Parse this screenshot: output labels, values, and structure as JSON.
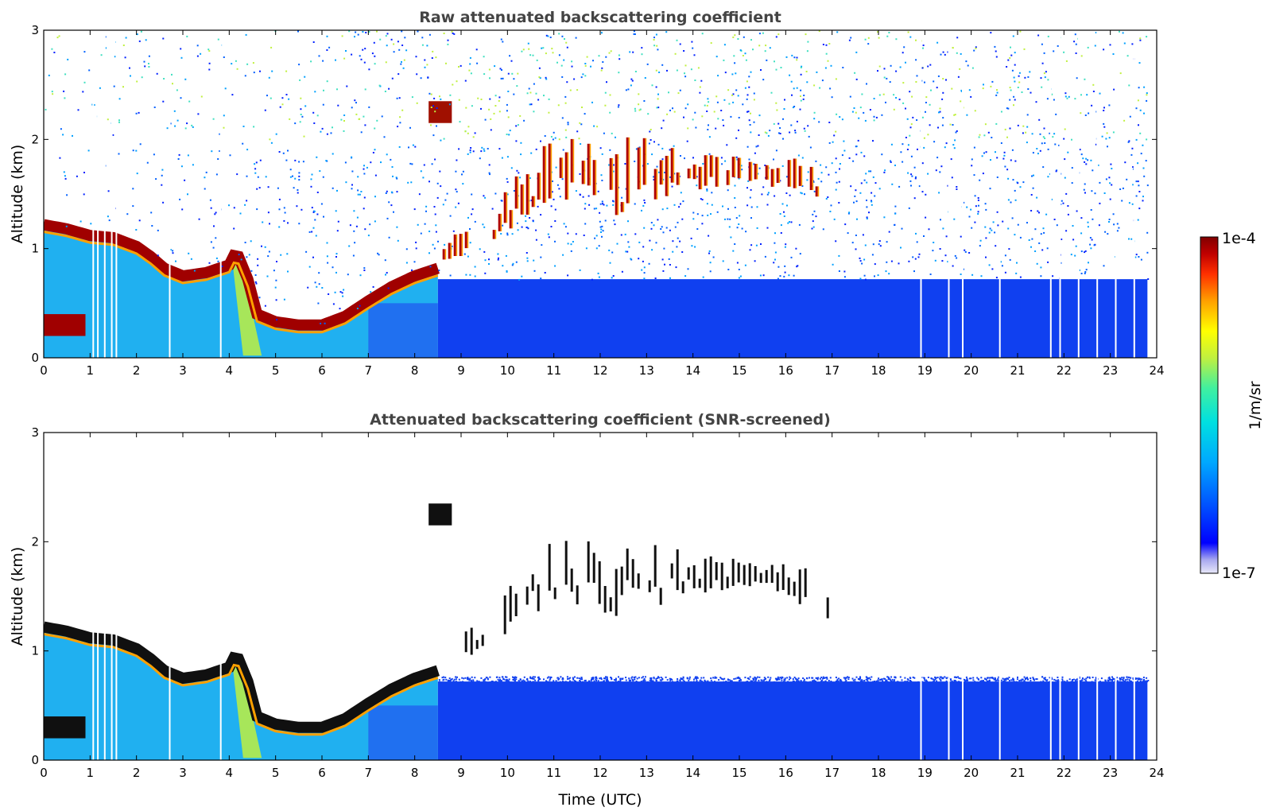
{
  "chart_data": [
    {
      "type": "heatmap",
      "title": "Raw attenuated backscattering coefficient",
      "xlabel": "",
      "ylabel": "Altitude (km)",
      "xlim": [
        0,
        24
      ],
      "ylim": [
        0,
        3
      ],
      "xticks": [
        "0",
        "1",
        "2",
        "3",
        "4",
        "5",
        "6",
        "7",
        "8",
        "9",
        "10",
        "11",
        "12",
        "13",
        "14",
        "15",
        "16",
        "17",
        "18",
        "19",
        "20",
        "21",
        "22",
        "23",
        "24"
      ],
      "yticks": [
        "0",
        "1",
        "2",
        "3"
      ],
      "x_unit": "hours UTC",
      "y_unit": "km",
      "features": {
        "boundary_layer_top_km": {
          "x": [
            0,
            0.5,
            1,
            1.5,
            2,
            2.3,
            2.6,
            3,
            3.5,
            4,
            4.15,
            4.4,
            4.6,
            5,
            5.5,
            6,
            6.5,
            7,
            7.5,
            8,
            8.5
          ],
          "y": [
            1.22,
            1.18,
            1.12,
            1.1,
            1.02,
            0.93,
            0.82,
            0.75,
            0.78,
            0.85,
            0.98,
            0.72,
            0.4,
            0.33,
            0.3,
            0.3,
            0.38,
            0.52,
            0.65,
            0.75,
            0.82
          ]
        },
        "low_cloud_layer_km": {
          "x": [
            0,
            0.9
          ],
          "y": [
            0.2,
            0.4
          ]
        },
        "elevated_aerosol_patch": {
          "x": [
            8.3,
            8.8
          ],
          "y": [
            2.15,
            2.35
          ]
        },
        "cumulus_cloud_base_km": {
          "x": [
            8.5,
            9.5,
            10,
            10.5,
            11,
            11.5,
            12,
            12.5,
            13,
            13.5,
            14,
            14.5,
            15,
            15.5,
            16,
            16.5,
            17
          ],
          "y": [
            0.85,
            1.0,
            1.15,
            1.3,
            1.4,
            1.35,
            1.3,
            1.3,
            1.35,
            1.45,
            1.5,
            1.55,
            1.55,
            1.6,
            1.5,
            1.35,
            1.25
          ]
        },
        "cumulus_cloud_top_km": {
          "x": [
            8.5,
            9.5,
            10,
            10.5,
            11,
            11.5,
            12,
            12.5,
            13,
            13.5,
            14,
            14.5,
            15,
            15.5,
            16,
            16.5,
            17
          ],
          "y": [
            1.0,
            1.25,
            1.5,
            1.8,
            1.95,
            2.0,
            1.95,
            2.0,
            1.95,
            1.9,
            1.8,
            1.8,
            1.75,
            1.7,
            1.75,
            1.8,
            1.4
          ]
        },
        "residual_layer_top_km": {
          "x": [
            8.5,
            23.8
          ],
          "y": [
            0.72,
            0.72
          ]
        }
      }
    },
    {
      "type": "heatmap",
      "title": "Attenuated backscattering coefficient (SNR-screened)",
      "xlabel": "Time (UTC)",
      "ylabel": "Altitude (km)",
      "xlim": [
        0,
        24
      ],
      "ylim": [
        0,
        3
      ],
      "xticks": [
        "0",
        "1",
        "2",
        "3",
        "4",
        "5",
        "6",
        "7",
        "8",
        "9",
        "10",
        "11",
        "12",
        "13",
        "14",
        "15",
        "16",
        "17",
        "18",
        "19",
        "20",
        "21",
        "22",
        "23",
        "24"
      ],
      "yticks": [
        "0",
        "1",
        "2",
        "3"
      ],
      "x_unit": "hours UTC",
      "y_unit": "km"
    }
  ],
  "colorbar": {
    "label": "1/m/sr",
    "max_label": "1e-4",
    "min_label": "1e-7",
    "vmin": 1e-07,
    "vmax": 0.0001,
    "scale": "log",
    "colormap": [
      "#e8e8f8",
      "#a8a8f0",
      "#0000ff",
      "#0050ff",
      "#00a8ff",
      "#00e0e0",
      "#40f0a0",
      "#c0f040",
      "#ffff00",
      "#ffa000",
      "#ff3000",
      "#c00000",
      "#800000"
    ]
  }
}
